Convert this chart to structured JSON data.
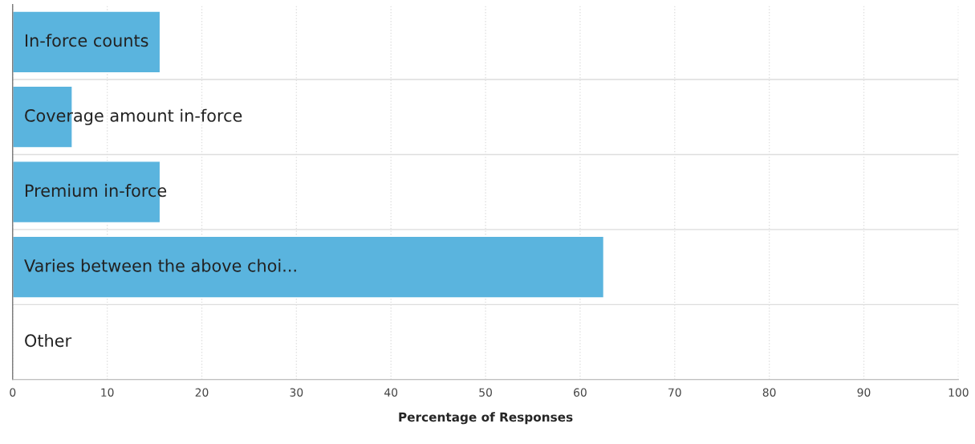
{
  "chart_data": {
    "type": "bar",
    "orientation": "horizontal",
    "xlabel": "Percentage of Responses",
    "categories": [
      "In-force counts",
      "Coverage amount in-force",
      "Premium in-force",
      "Varies between the above choi...",
      "Other"
    ],
    "values": [
      15.6,
      6.3,
      15.6,
      62.5,
      0
    ],
    "color": "#5ab4de",
    "xlim": [
      0,
      100
    ],
    "xticks": [
      0,
      10,
      20,
      30,
      40,
      50,
      60,
      70,
      80,
      90,
      100
    ],
    "grid": "x"
  }
}
